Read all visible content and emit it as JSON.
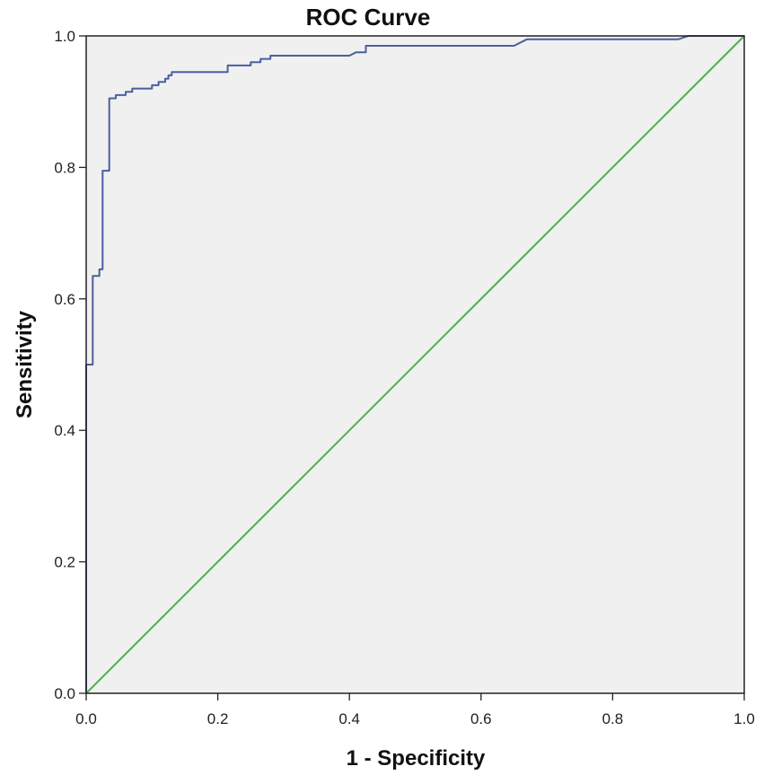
{
  "chart_data": {
    "type": "line",
    "title": "ROC Curve",
    "xlabel": "1 - Specificity",
    "ylabel": "Sensitivity",
    "xlim": [
      0,
      1
    ],
    "ylim": [
      0,
      1
    ],
    "xticks": [
      "0.0",
      "0.2",
      "0.4",
      "0.6",
      "0.8",
      "1.0"
    ],
    "yticks": [
      "0.0",
      "0.2",
      "0.4",
      "0.6",
      "0.8",
      "1.0"
    ],
    "grid": false,
    "plot_background": "#f0f0f0",
    "series": [
      {
        "color": "#4a5f9f",
        "points": [
          [
            0.0,
            0.0
          ],
          [
            0.0,
            0.5
          ],
          [
            0.01,
            0.5
          ],
          [
            0.01,
            0.635
          ],
          [
            0.02,
            0.635
          ],
          [
            0.02,
            0.645
          ],
          [
            0.025,
            0.645
          ],
          [
            0.025,
            0.795
          ],
          [
            0.035,
            0.795
          ],
          [
            0.035,
            0.905
          ],
          [
            0.045,
            0.905
          ],
          [
            0.045,
            0.91
          ],
          [
            0.06,
            0.91
          ],
          [
            0.06,
            0.915
          ],
          [
            0.07,
            0.915
          ],
          [
            0.07,
            0.92
          ],
          [
            0.1,
            0.92
          ],
          [
            0.1,
            0.925
          ],
          [
            0.11,
            0.925
          ],
          [
            0.11,
            0.93
          ],
          [
            0.12,
            0.93
          ],
          [
            0.12,
            0.935
          ],
          [
            0.125,
            0.935
          ],
          [
            0.125,
            0.94
          ],
          [
            0.13,
            0.94
          ],
          [
            0.13,
            0.945
          ],
          [
            0.215,
            0.945
          ],
          [
            0.215,
            0.955
          ],
          [
            0.25,
            0.955
          ],
          [
            0.25,
            0.96
          ],
          [
            0.265,
            0.96
          ],
          [
            0.265,
            0.965
          ],
          [
            0.28,
            0.965
          ],
          [
            0.28,
            0.97
          ],
          [
            0.4,
            0.97
          ],
          [
            0.41,
            0.975
          ],
          [
            0.425,
            0.975
          ],
          [
            0.425,
            0.985
          ],
          [
            0.65,
            0.985
          ],
          [
            0.67,
            0.995
          ],
          [
            0.9,
            0.995
          ],
          [
            0.915,
            1.0
          ],
          [
            1.0,
            1.0
          ]
        ]
      },
      {
        "color": "#4caf50",
        "points": [
          [
            0,
            0
          ],
          [
            1,
            1
          ]
        ]
      }
    ]
  }
}
